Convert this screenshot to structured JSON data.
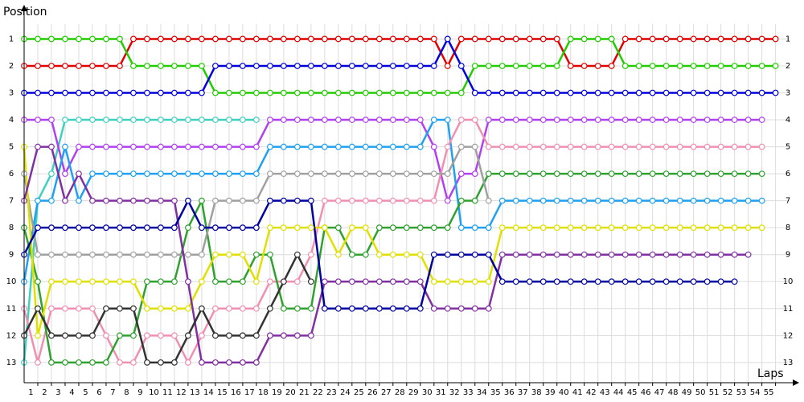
{
  "chart_data": {
    "type": "line",
    "title": "Position",
    "x_label": "Laps",
    "x": [
      0,
      1,
      2,
      3,
      4,
      5,
      6,
      7,
      8,
      9,
      10,
      11,
      12,
      13,
      14,
      15,
      16,
      17,
      18,
      19,
      20,
      21,
      22,
      23,
      24,
      25,
      26,
      27,
      28,
      29,
      30,
      31,
      32,
      33,
      34,
      35,
      36,
      37,
      38,
      39,
      40,
      41,
      42,
      43,
      44,
      45,
      46,
      47,
      48,
      49,
      50,
      51,
      52,
      53,
      54,
      55
    ],
    "xlim": [
      0,
      56.2
    ],
    "xticks": [
      1,
      2,
      3,
      4,
      5,
      6,
      7,
      8,
      9,
      10,
      11,
      12,
      13,
      14,
      15,
      16,
      17,
      18,
      19,
      20,
      21,
      22,
      23,
      24,
      25,
      26,
      27,
      28,
      29,
      30,
      31,
      32,
      33,
      34,
      35,
      36,
      37,
      38,
      39,
      40,
      41,
      42,
      43,
      44,
      45,
      46,
      47,
      48,
      49,
      50,
      51,
      52,
      53,
      54,
      55
    ],
    "ylim": [
      13.75,
      0.45
    ],
    "yticks": [
      1,
      2,
      3,
      4,
      5,
      6,
      7,
      8,
      9,
      10,
      11,
      12,
      13
    ],
    "grid": true,
    "series": [
      {
        "color": "#e00000",
        "values": [
          2,
          2,
          2,
          2,
          2,
          2,
          2,
          2,
          1,
          1,
          1,
          1,
          1,
          1,
          1,
          1,
          1,
          1,
          1,
          1,
          1,
          1,
          1,
          1,
          1,
          1,
          1,
          1,
          1,
          1,
          1,
          2,
          1,
          1,
          1,
          1,
          1,
          1,
          1,
          1,
          2,
          2,
          2,
          2,
          1,
          1,
          1,
          1,
          1,
          1,
          1,
          1,
          1,
          1,
          1,
          1
        ]
      },
      {
        "color": "#22cc00",
        "values": [
          1,
          1,
          1,
          1,
          1,
          1,
          1,
          1,
          2,
          2,
          2,
          2,
          2,
          2,
          3,
          3,
          3,
          3,
          3,
          3,
          3,
          3,
          3,
          3,
          3,
          3,
          3,
          3,
          3,
          3,
          3,
          3,
          3,
          2,
          2,
          2,
          2,
          2,
          2,
          2,
          1,
          1,
          1,
          1,
          2,
          2,
          2,
          2,
          2,
          2,
          2,
          2,
          2,
          2,
          2,
          2
        ]
      },
      {
        "color": "#0000dd",
        "values": [
          3,
          3,
          3,
          3,
          3,
          3,
          3,
          3,
          3,
          3,
          3,
          3,
          3,
          3,
          2,
          2,
          2,
          2,
          2,
          2,
          2,
          2,
          2,
          2,
          2,
          2,
          2,
          2,
          2,
          2,
          2,
          1,
          2,
          3,
          3,
          3,
          3,
          3,
          3,
          3,
          3,
          3,
          3,
          3,
          3,
          3,
          3,
          3,
          3,
          3,
          3,
          3,
          3,
          3,
          3,
          3
        ]
      },
      {
        "color": "#40d0c0",
        "values": [
          13,
          7,
          6,
          4,
          4,
          4,
          4,
          4,
          4,
          4,
          4,
          4,
          4,
          4,
          4,
          4,
          4,
          4,
          null,
          null,
          null,
          null,
          null,
          null,
          null,
          null,
          null,
          null,
          null,
          null,
          null,
          null,
          null,
          null,
          null,
          null,
          null,
          null,
          null,
          null,
          null,
          null,
          null,
          null,
          null,
          null,
          null,
          null,
          null,
          null,
          null,
          null,
          null,
          null,
          null,
          null
        ]
      },
      {
        "color": "#b040f0",
        "values": [
          4,
          4,
          4,
          6,
          5,
          5,
          5,
          5,
          5,
          5,
          5,
          5,
          5,
          5,
          5,
          5,
          5,
          5,
          4,
          4,
          4,
          4,
          4,
          4,
          4,
          4,
          4,
          4,
          4,
          4,
          5,
          7,
          6,
          6,
          4,
          4,
          4,
          4,
          4,
          4,
          4,
          4,
          4,
          4,
          4,
          4,
          4,
          4,
          4,
          4,
          4,
          4,
          4,
          4,
          4,
          null
        ]
      },
      {
        "color": "#20a0f0",
        "values": [
          10,
          7,
          7,
          5,
          7,
          6,
          6,
          6,
          6,
          6,
          6,
          6,
          6,
          6,
          6,
          6,
          6,
          6,
          5,
          5,
          5,
          5,
          5,
          5,
          5,
          5,
          5,
          5,
          5,
          5,
          4,
          4,
          8,
          8,
          8,
          7,
          7,
          7,
          7,
          7,
          7,
          7,
          7,
          7,
          7,
          7,
          7,
          7,
          7,
          7,
          7,
          7,
          7,
          7,
          7,
          null
        ]
      },
      {
        "color": "#f090b0",
        "values": [
          11,
          13,
          11,
          11,
          11,
          11,
          12,
          13,
          13,
          12,
          12,
          12,
          13,
          12,
          11,
          11,
          11,
          11,
          10,
          10,
          10,
          9,
          7,
          7,
          7,
          7,
          7,
          7,
          7,
          7,
          7,
          5,
          4,
          4,
          5,
          5,
          5,
          5,
          5,
          5,
          5,
          5,
          5,
          5,
          5,
          5,
          5,
          5,
          5,
          5,
          5,
          5,
          5,
          5,
          5,
          null
        ]
      },
      {
        "color": "#30a030",
        "values": [
          8,
          10,
          13,
          13,
          13,
          13,
          13,
          12,
          12,
          10,
          10,
          10,
          8,
          7,
          10,
          10,
          10,
          9,
          9,
          11,
          11,
          11,
          8,
          8,
          9,
          9,
          8,
          8,
          8,
          8,
          8,
          8,
          7,
          7,
          6,
          6,
          6,
          6,
          6,
          6,
          6,
          6,
          6,
          6,
          6,
          6,
          6,
          6,
          6,
          6,
          6,
          6,
          6,
          6,
          6,
          null
        ]
      },
      {
        "color": "#a0a0a0",
        "values": [
          6,
          9,
          9,
          9,
          9,
          9,
          9,
          9,
          9,
          9,
          9,
          9,
          9,
          9,
          7,
          7,
          7,
          7,
          6,
          6,
          6,
          6,
          6,
          6,
          6,
          6,
          6,
          6,
          6,
          6,
          6,
          6,
          5,
          5,
          7,
          null,
          null,
          null,
          null,
          null,
          null,
          null,
          null,
          null,
          null,
          null,
          null,
          null,
          null,
          null,
          null,
          null,
          null,
          null,
          null,
          null
        ]
      },
      {
        "color": "#e0e000",
        "values": [
          5,
          12,
          10,
          10,
          10,
          10,
          10,
          10,
          10,
          11,
          11,
          11,
          11,
          10,
          9,
          9,
          9,
          10,
          8,
          8,
          8,
          8,
          8,
          9,
          8,
          8,
          9,
          9,
          9,
          9,
          10,
          10,
          10,
          10,
          10,
          8,
          8,
          8,
          8,
          8,
          8,
          8,
          8,
          8,
          8,
          8,
          8,
          8,
          8,
          8,
          8,
          8,
          8,
          8,
          8,
          null
        ]
      },
      {
        "color": "#8030a0",
        "values": [
          7,
          5,
          5,
          7,
          6,
          7,
          7,
          7,
          7,
          7,
          7,
          7,
          10,
          13,
          13,
          13,
          13,
          13,
          12,
          12,
          12,
          12,
          10,
          10,
          10,
          10,
          10,
          10,
          10,
          10,
          11,
          11,
          11,
          11,
          11,
          9,
          9,
          9,
          9,
          9,
          9,
          9,
          9,
          9,
          9,
          9,
          9,
          9,
          9,
          9,
          9,
          9,
          9,
          9,
          null,
          null
        ]
      },
      {
        "color": "#0000a0",
        "values": [
          9,
          8,
          8,
          8,
          8,
          8,
          8,
          8,
          8,
          8,
          8,
          8,
          7,
          8,
          8,
          8,
          8,
          8,
          7,
          7,
          7,
          7,
          11,
          11,
          11,
          11,
          11,
          11,
          11,
          11,
          9,
          9,
          9,
          9,
          9,
          10,
          10,
          10,
          10,
          10,
          10,
          10,
          10,
          10,
          10,
          10,
          10,
          10,
          10,
          10,
          10,
          10,
          10,
          null,
          null,
          null
        ]
      },
      {
        "color": "#333333",
        "values": [
          12,
          11,
          12,
          12,
          12,
          12,
          11,
          11,
          11,
          13,
          13,
          13,
          12,
          11,
          12,
          12,
          12,
          12,
          11,
          10,
          9,
          10,
          null,
          null,
          null,
          null,
          null,
          null,
          null,
          null,
          null,
          null,
          null,
          null,
          null,
          null,
          null,
          null,
          null,
          null,
          null,
          null,
          null,
          null,
          null,
          null,
          null,
          null,
          null,
          null,
          null,
          null,
          null,
          null,
          null,
          null
        ]
      }
    ]
  }
}
